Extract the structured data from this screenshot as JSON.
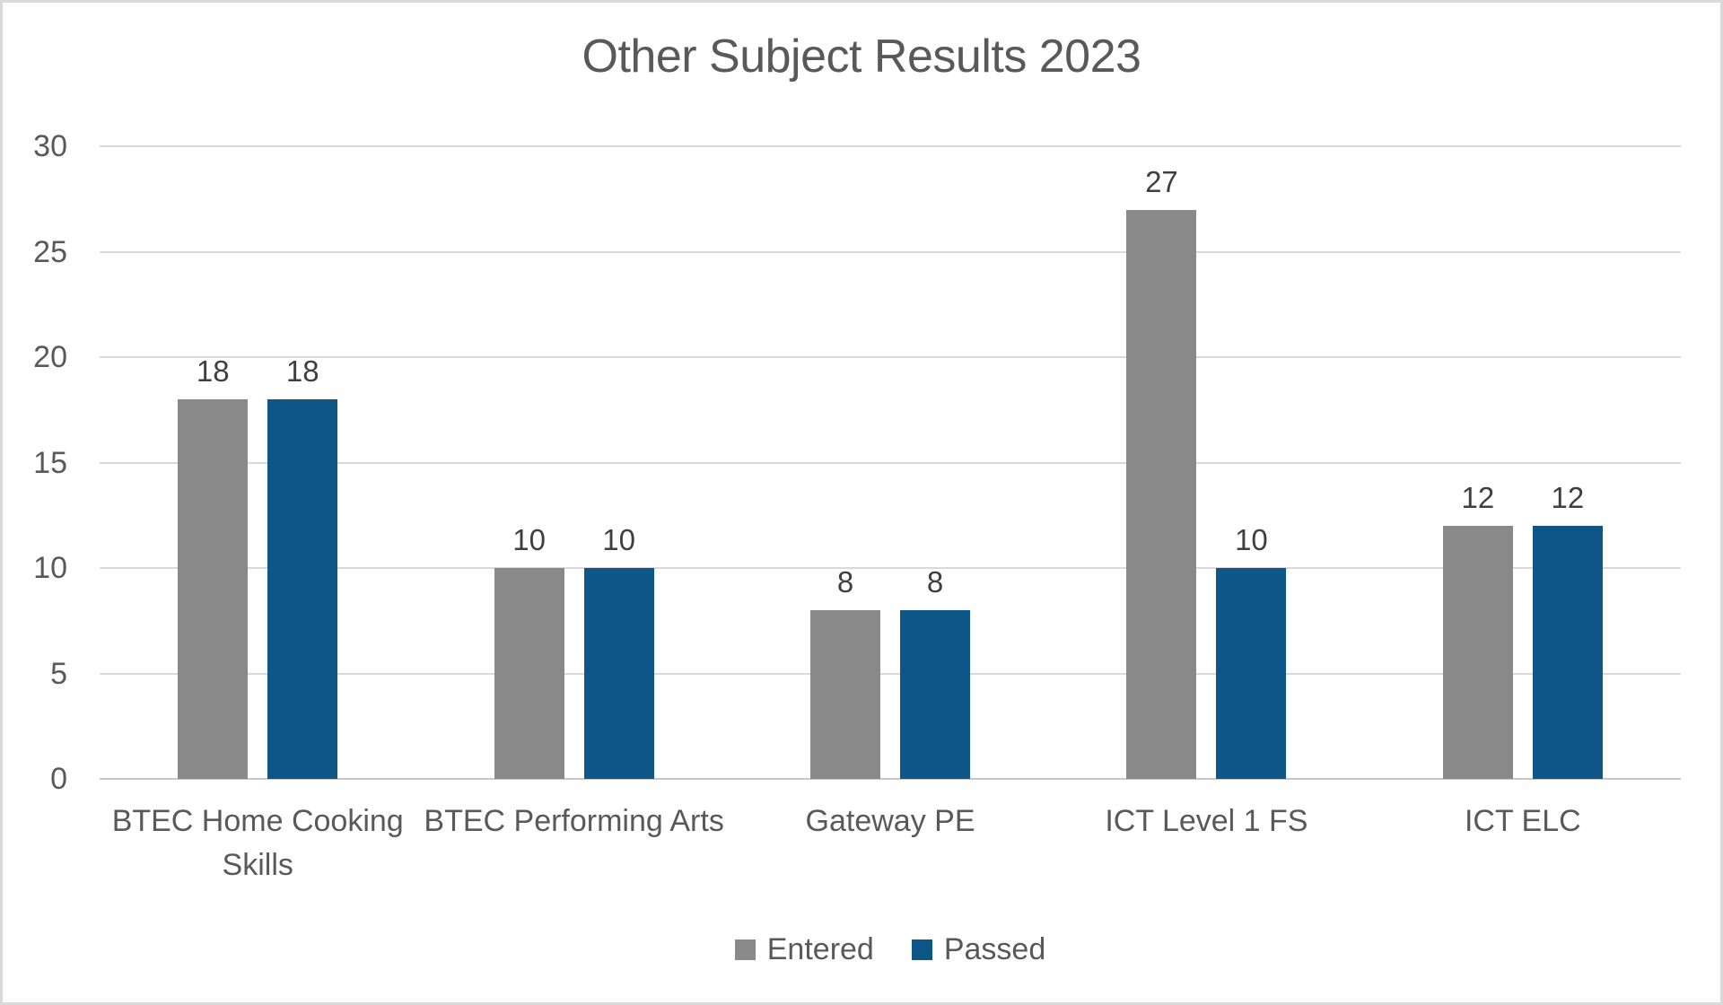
{
  "chart_data": {
    "type": "bar",
    "title": "Other Subject Results 2023",
    "categories": [
      "BTEC Home Cooking Skills",
      "BTEC Performing Arts",
      "Gateway PE",
      "ICT Level 1 FS",
      "ICT ELC"
    ],
    "series": [
      {
        "name": "Entered",
        "color": "#898989",
        "values": [
          18,
          10,
          8,
          27,
          12
        ]
      },
      {
        "name": "Passed",
        "color": "#0e5588",
        "values": [
          18,
          10,
          8,
          10,
          12
        ]
      }
    ],
    "xlabel": "",
    "ylabel": "",
    "ylim": [
      0,
      30
    ],
    "yticks": [
      0,
      5,
      10,
      15,
      20,
      25,
      30
    ],
    "grid": true,
    "data_labels": true,
    "legend_position": "bottom"
  },
  "colors": {
    "title_text": "#595959",
    "axis_text": "#595959",
    "data_label_text": "#3f3f3f",
    "gridline": "#d9d9d9",
    "axis_line": "#c6c6c6",
    "frame_border": "#d9d9d9",
    "background": "#ffffff"
  }
}
